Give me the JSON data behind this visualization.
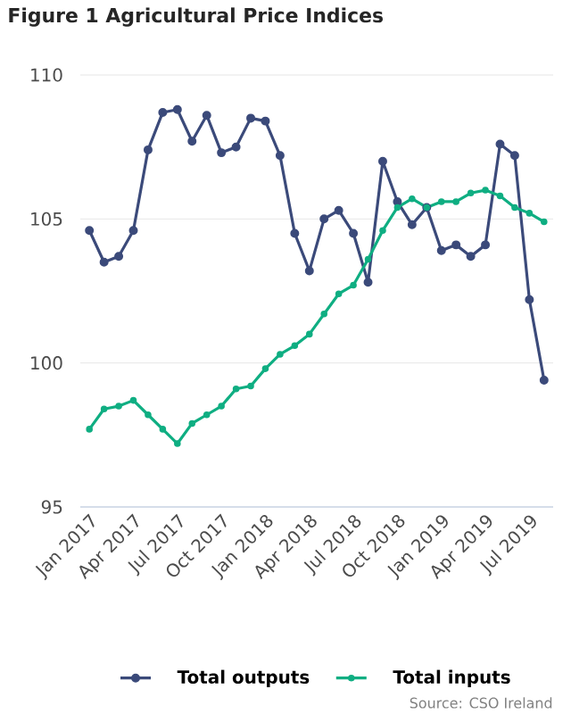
{
  "chart_data": {
    "type": "line",
    "title": "Figure 1 Agricultural Price Indices",
    "x": [
      "2017-01",
      "2017-02",
      "2017-03",
      "2017-04",
      "2017-05",
      "2017-06",
      "2017-07",
      "2017-08",
      "2017-09",
      "2017-10",
      "2017-11",
      "2017-12",
      "2018-01",
      "2018-02",
      "2018-03",
      "2018-04",
      "2018-05",
      "2018-06",
      "2018-07",
      "2018-08",
      "2018-09",
      "2018-10",
      "2018-11",
      "2018-12",
      "2019-01",
      "2019-02",
      "2019-03",
      "2019-04",
      "2019-05",
      "2019-06",
      "2019-07",
      "2019-08"
    ],
    "series": [
      {
        "name": "Total outputs",
        "color": "#3b4a7a",
        "values": [
          104.6,
          103.5,
          103.7,
          104.6,
          107.4,
          108.7,
          108.8,
          107.7,
          108.6,
          107.3,
          107.5,
          108.5,
          108.4,
          107.2,
          104.5,
          103.2,
          105.0,
          105.3,
          104.5,
          102.8,
          107.0,
          105.6,
          104.8,
          105.4,
          103.9,
          104.1,
          103.7,
          104.1,
          107.6,
          107.2,
          102.2,
          99.4
        ]
      },
      {
        "name": "Total inputs",
        "color": "#0fae82",
        "values": [
          97.7,
          98.4,
          98.5,
          98.7,
          98.2,
          97.7,
          97.2,
          97.9,
          98.2,
          98.5,
          99.1,
          99.2,
          99.8,
          100.3,
          100.6,
          101.0,
          101.7,
          102.4,
          102.7,
          103.6,
          104.6,
          105.4,
          105.7,
          105.4,
          105.6,
          105.6,
          105.9,
          106.0,
          105.8,
          105.4,
          105.2,
          104.9
        ]
      }
    ],
    "xlim": [
      "2017-01",
      "2019-08"
    ],
    "xticks": [
      {
        "value": "2017-01",
        "label": "Jan 2017"
      },
      {
        "value": "2017-04",
        "label": "Apr 2017"
      },
      {
        "value": "2017-07",
        "label": "Jul 2017"
      },
      {
        "value": "2017-10",
        "label": "Oct 2017"
      },
      {
        "value": "2018-01",
        "label": "Jan 2018"
      },
      {
        "value": "2018-04",
        "label": "Apr 2018"
      },
      {
        "value": "2018-07",
        "label": "Jul 2018"
      },
      {
        "value": "2018-10",
        "label": "Oct 2018"
      },
      {
        "value": "2019-01",
        "label": "Jan 2019"
      },
      {
        "value": "2019-04",
        "label": "Apr 2019"
      },
      {
        "value": "2019-07",
        "label": "Jul 2019"
      }
    ],
    "ylim": [
      95,
      110
    ],
    "yticks": [
      95,
      100,
      105,
      110
    ],
    "grid": "y",
    "legend": "bottom",
    "marker": "circle",
    "line_style": "solid",
    "annotations": [
      "Source: CSO Ireland"
    ]
  }
}
